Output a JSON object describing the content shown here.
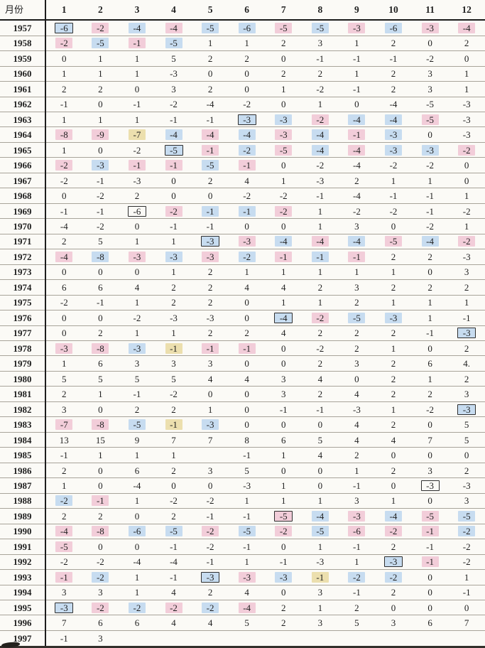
{
  "table": {
    "header": {
      "label": "月份",
      "months": [
        "1",
        "2",
        "3",
        "4",
        "5",
        "6",
        "7",
        "8",
        "9",
        "10",
        "11",
        "12"
      ]
    },
    "rows": [
      {
        "y": "1957",
        "v": [
          "-6",
          "-2",
          "-4",
          "-4",
          "-5",
          "-6",
          "-5",
          "-5",
          "-3",
          "-6",
          "-3",
          "-4"
        ],
        "m": [
          "B",
          "p",
          "b",
          "p",
          "b",
          "b",
          "p",
          "b",
          "p",
          "b",
          "p",
          "p"
        ]
      },
      {
        "y": "1958",
        "v": [
          "-2",
          "-5",
          "-1",
          "-5",
          "1",
          "1",
          "2",
          "3",
          "1",
          "2",
          "0",
          "2"
        ],
        "m": [
          "p",
          "b",
          "p",
          "b",
          "",
          "",
          "",
          "",
          "",
          "",
          "",
          ""
        ]
      },
      {
        "y": "1959",
        "v": [
          "0",
          "1",
          "1",
          "5",
          "2",
          "2",
          "0",
          "-1",
          "-1",
          "-1",
          "-2",
          "0"
        ]
      },
      {
        "y": "1960",
        "v": [
          "1",
          "1",
          "1",
          "-3",
          "0",
          "0",
          "2",
          "2",
          "1",
          "2",
          "3",
          "1"
        ]
      },
      {
        "y": "1961",
        "v": [
          "2",
          "2",
          "0",
          "3",
          "2",
          "0",
          "1",
          "-2",
          "-1",
          "2",
          "3",
          "1"
        ]
      },
      {
        "y": "1962",
        "v": [
          "-1",
          "0",
          "-1",
          "-2",
          "-4",
          "-2",
          "0",
          "1",
          "0",
          "-4",
          "-5",
          "-3"
        ]
      },
      {
        "y": "1963",
        "v": [
          "1",
          "1",
          "1",
          "-1",
          "-1",
          "-3",
          "-3",
          "-2",
          "-4",
          "-4",
          "-5",
          "-3"
        ],
        "m": [
          "",
          "",
          "",
          "",
          "",
          "B",
          "b",
          "p",
          "b",
          "b",
          "p",
          ""
        ]
      },
      {
        "y": "1964",
        "v": [
          "-8",
          "-9",
          "-7",
          "-4",
          "-4",
          "-4",
          "-3",
          "-4",
          "-1",
          "-3",
          "0",
          "-3"
        ],
        "m": [
          "p",
          "p",
          "y",
          "b",
          "p",
          "b",
          "p",
          "b",
          "p",
          "b",
          "",
          ""
        ]
      },
      {
        "y": "1965",
        "v": [
          "1",
          "0",
          "-2",
          "-5",
          "-1",
          "-2",
          "-5",
          "-4",
          "-4",
          "-3",
          "-3",
          "-2"
        ],
        "m": [
          "",
          "",
          "",
          "B",
          "p",
          "b",
          "p",
          "b",
          "p",
          "b",
          "b",
          "p"
        ]
      },
      {
        "y": "1966",
        "v": [
          "-2",
          "-3",
          "-1",
          "-1",
          "-5",
          "-1",
          "0",
          "-2",
          "-4",
          "-2",
          "-2",
          "0"
        ],
        "m": [
          "p",
          "b",
          "p",
          "p",
          "b",
          "p",
          "",
          "",
          "",
          "",
          "",
          ""
        ]
      },
      {
        "y": "1967",
        "v": [
          "-2",
          "-1",
          "-3",
          "0",
          "2",
          "4",
          "1",
          "-3",
          "2",
          "1",
          "1",
          "0"
        ]
      },
      {
        "y": "1968",
        "v": [
          "0",
          "-2",
          "2",
          "0",
          "0",
          "-2",
          "-2",
          "-1",
          "-4",
          "-1",
          "-1",
          "1"
        ]
      },
      {
        "y": "1969",
        "v": [
          "-1",
          "-1",
          "-6",
          "-2",
          "-1",
          "-1",
          "-2",
          "1",
          "-2",
          "-2",
          "-1",
          "-2"
        ],
        "m": [
          "",
          "",
          "x",
          "p",
          "b",
          "b",
          "p",
          "",
          "",
          "",
          "",
          ""
        ]
      },
      {
        "y": "1970",
        "v": [
          "-4",
          "-2",
          "0",
          "-1",
          "-1",
          "0",
          "0",
          "1",
          "3",
          "0",
          "-2",
          "1"
        ]
      },
      {
        "y": "1971",
        "v": [
          "2",
          "5",
          "1",
          "1",
          "-3",
          "-3",
          "-4",
          "-4",
          "-4",
          "-5",
          "-4",
          "-2"
        ],
        "m": [
          "",
          "",
          "",
          "",
          "B",
          "p",
          "b",
          "p",
          "b",
          "p",
          "b",
          "p"
        ]
      },
      {
        "y": "1972",
        "v": [
          "-4",
          "-8",
          "-3",
          "-3",
          "-3",
          "-2",
          "-1",
          "-1",
          "-1",
          "2",
          "2",
          "-3"
        ],
        "m": [
          "p",
          "b",
          "p",
          "b",
          "p",
          "b",
          "p",
          "b",
          "p",
          "",
          "",
          ""
        ]
      },
      {
        "y": "1973",
        "v": [
          "0",
          "0",
          "0",
          "1",
          "2",
          "1",
          "1",
          "1",
          "1",
          "1",
          "0",
          "3"
        ]
      },
      {
        "y": "1974",
        "v": [
          "6",
          "6",
          "4",
          "2",
          "2",
          "4",
          "4",
          "2",
          "3",
          "2",
          "2",
          "2"
        ]
      },
      {
        "y": "1975",
        "v": [
          "-2",
          "-1",
          "1",
          "2",
          "2",
          "0",
          "1",
          "1",
          "2",
          "1",
          "1",
          "1"
        ]
      },
      {
        "y": "1976",
        "v": [
          "0",
          "0",
          "-2",
          "-3",
          "-3",
          "0",
          "-4",
          "-2",
          "-5",
          "-3",
          "1",
          "-1"
        ],
        "m": [
          "",
          "",
          "",
          "",
          "",
          "",
          "B",
          "p",
          "b",
          "b",
          "",
          ""
        ]
      },
      {
        "y": "1977",
        "v": [
          "0",
          "2",
          "1",
          "1",
          "2",
          "2",
          "4",
          "2",
          "2",
          "2",
          "-1",
          "-3"
        ],
        "m": [
          "",
          "",
          "",
          "",
          "",
          "",
          "",
          "",
          "",
          "",
          "",
          "B"
        ]
      },
      {
        "y": "1978",
        "v": [
          "-3",
          "-8",
          "-3",
          "-1",
          "-1",
          "-1",
          "0",
          "-2",
          "2",
          "1",
          "0",
          "2"
        ],
        "m": [
          "p",
          "p",
          "b",
          "y",
          "p",
          "p",
          "",
          "",
          "",
          "",
          "",
          ""
        ]
      },
      {
        "y": "1979",
        "v": [
          "1",
          "6",
          "3",
          "3",
          "3",
          "0",
          "0",
          "2",
          "3",
          "2",
          "6",
          "4."
        ]
      },
      {
        "y": "1980",
        "v": [
          "5",
          "5",
          "5",
          "5",
          "4",
          "4",
          "3",
          "4",
          "0",
          "2",
          "1",
          "2"
        ]
      },
      {
        "y": "1981",
        "v": [
          "2",
          "1",
          "-1",
          "-2",
          "0",
          "0",
          "3",
          "2",
          "4",
          "2",
          "2",
          "3"
        ]
      },
      {
        "y": "1982",
        "v": [
          "3",
          "0",
          "2",
          "2",
          "1",
          "0",
          "-1",
          "-1",
          "-3",
          "1",
          "-2",
          "-3"
        ],
        "m": [
          "",
          "",
          "",
          "",
          "",
          "",
          "",
          "",
          "",
          "",
          "",
          "B"
        ]
      },
      {
        "y": "1983",
        "v": [
          "-7",
          "-8",
          "-5",
          "-1",
          "-3",
          "0",
          "0",
          "0",
          "4",
          "2",
          "0",
          "5"
        ],
        "m": [
          "p",
          "p",
          "b",
          "y",
          "b",
          "",
          "",
          "",
          "",
          "",
          "",
          ""
        ]
      },
      {
        "y": "1984",
        "v": [
          "13",
          "15",
          "9",
          "7",
          "7",
          "8",
          "6",
          "5",
          "4",
          "4",
          "7",
          "5"
        ]
      },
      {
        "y": "1985",
        "v": [
          "-1",
          "1",
          "1",
          "1",
          "",
          "-1",
          "1",
          "4",
          "2",
          "0",
          "0",
          "0"
        ]
      },
      {
        "y": "1986",
        "v": [
          "2",
          "0",
          "6",
          "2",
          "3",
          "5",
          "0",
          "0",
          "1",
          "2",
          "3",
          "2"
        ]
      },
      {
        "y": "1987",
        "v": [
          "1",
          "0",
          "-4",
          "0",
          "0",
          "-3",
          "1",
          "0",
          "-1",
          "0",
          "-3",
          "-3"
        ],
        "m": [
          "",
          "",
          "",
          "",
          "",
          "",
          "",
          "",
          "",
          "",
          "x",
          ""
        ]
      },
      {
        "y": "1988",
        "v": [
          "-2",
          "-1",
          "1",
          "-2",
          "-2",
          "1",
          "1",
          "1",
          "3",
          "1",
          "0",
          "3"
        ],
        "m": [
          "b",
          "p",
          "",
          "",
          "",
          "",
          "",
          "",
          "",
          "",
          "",
          ""
        ]
      },
      {
        "y": "1989",
        "v": [
          "2",
          "2",
          "0",
          "2",
          "-1",
          "-1",
          "-5",
          "-4",
          "-3",
          "-4",
          "-5",
          "-5"
        ],
        "m": [
          "",
          "",
          "",
          "",
          "",
          "",
          "P",
          "b",
          "p",
          "b",
          "p",
          "b"
        ]
      },
      {
        "y": "1990",
        "v": [
          "-4",
          "-8",
          "-6",
          "-5",
          "-2",
          "-5",
          "-2",
          "-5",
          "-6",
          "-2",
          "-1",
          "-2"
        ],
        "m": [
          "p",
          "p",
          "b",
          "b",
          "p",
          "b",
          "p",
          "b",
          "p",
          "p",
          "p",
          "b"
        ]
      },
      {
        "y": "1991",
        "v": [
          "-5",
          "0",
          "0",
          "-1",
          "-2",
          "-1",
          "0",
          "1",
          "-1",
          "2",
          "-1",
          "-2"
        ],
        "m": [
          "p",
          "",
          "",
          "",
          "",
          "",
          "",
          "",
          "",
          "",
          "",
          ""
        ]
      },
      {
        "y": "1992",
        "v": [
          "-2",
          "-2",
          "-4",
          "-4",
          "-1",
          "1",
          "-1",
          "-3",
          "1",
          "-3",
          "-1",
          "-2"
        ],
        "m": [
          "",
          "",
          "",
          "",
          "",
          "",
          "",
          "",
          "",
          "B",
          "p",
          ""
        ]
      },
      {
        "y": "1993",
        "v": [
          "-1",
          "-2",
          "1",
          "-1",
          "-3",
          "-3",
          "-3",
          "-1",
          "-2",
          "-2",
          "0",
          "1"
        ],
        "m": [
          "p",
          "b",
          "",
          "",
          "B",
          "p",
          "b",
          "y",
          "b",
          "b",
          "",
          ""
        ]
      },
      {
        "y": "1994",
        "v": [
          "3",
          "3",
          "1",
          "4",
          "2",
          "4",
          "0",
          "3",
          "-1",
          "2",
          "0",
          "-1"
        ]
      },
      {
        "y": "1995",
        "v": [
          "-3",
          "-2",
          "-2",
          "-2",
          "-2",
          "-4",
          "2",
          "1",
          "2",
          "0",
          "0",
          "0"
        ],
        "m": [
          "B",
          "p",
          "b",
          "p",
          "b",
          "p",
          "",
          "",
          "",
          "",
          "",
          ""
        ]
      },
      {
        "y": "1996",
        "v": [
          "7",
          "6",
          "6",
          "4",
          "4",
          "5",
          "2",
          "3",
          "5",
          "3",
          "6",
          "7"
        ]
      },
      {
        "y": "1997",
        "v": [
          "-1",
          "3",
          "",
          "",
          "",
          "",
          "",
          "",
          "",
          "",
          "",
          ""
        ]
      }
    ]
  },
  "colors": {
    "pink": "#f2cdd9",
    "blue": "#c7dcf0",
    "yellow": "#ecdfae",
    "box_border": "#2e2e2e"
  }
}
